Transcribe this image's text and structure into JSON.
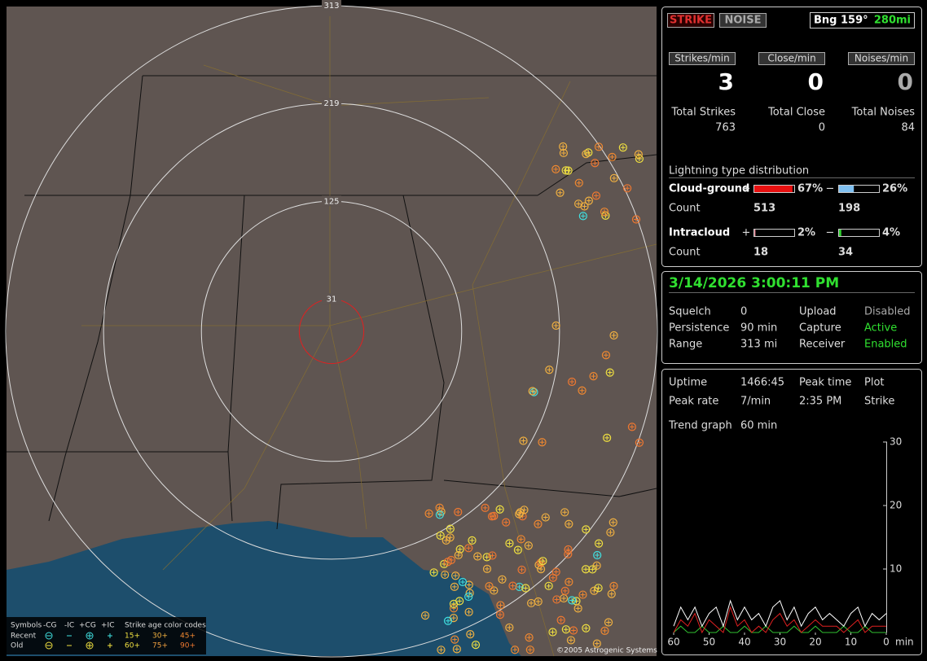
{
  "map": {
    "rings": [
      "313",
      "219",
      "125",
      "31"
    ],
    "copyright": "©2005 Astrogenic Systems",
    "legend": {
      "title": "Symbols",
      "symbols": [
        "-CG",
        "-IC",
        "+CG",
        "+IC"
      ],
      "rows": [
        "Recent",
        "Old"
      ],
      "age_title": "Strike age color codes",
      "ages": [
        {
          "label": "15+",
          "color": "#f0e040"
        },
        {
          "label": "30+",
          "color": "#f0b040"
        },
        {
          "label": "45+",
          "color": "#f08830"
        },
        {
          "label": "60+",
          "color": "#f0e040"
        },
        {
          "label": "75+",
          "color": "#f0a040"
        },
        {
          "label": "90+",
          "color": "#f07830"
        }
      ]
    }
  },
  "header": {
    "buttons": [
      "STRIKE",
      "NOISE"
    ],
    "bearing": "Bng 159°",
    "distance": "280mi"
  },
  "rates": [
    {
      "label": "Strikes/min",
      "value": "3",
      "total_label": "Total Strikes",
      "total": "763"
    },
    {
      "label": "Close/min",
      "value": "0",
      "total_label": "Total Close",
      "total": "0"
    },
    {
      "label": "Noises/min",
      "value": "0",
      "total_label": "Total Noises",
      "total": "84"
    }
  ],
  "distribution": {
    "title": "Lightning type distribution",
    "count_label": "Count",
    "rows": [
      {
        "name": "Cloud-ground",
        "pos_sign": "+",
        "pos": {
          "value": 67,
          "label": "67%"
        },
        "neg_sign": "−",
        "neg": {
          "value": 26,
          "label": "26%"
        },
        "pos_count": "513",
        "neg_count": "198"
      },
      {
        "name": "Intracloud",
        "pos_sign": "+",
        "pos": {
          "value": 2,
          "label": "2%"
        },
        "neg_sign": "−",
        "neg": {
          "value": 4,
          "label": "4%"
        },
        "pos_count": "18",
        "neg_count": "34"
      }
    ]
  },
  "status": {
    "datetime": "3/14/2026 3:00:11 PM",
    "rows": [
      [
        "Squelch",
        "0",
        "Upload",
        "Disabled"
      ],
      [
        "Persistence",
        "90 min",
        "Capture",
        "Active"
      ],
      [
        "Range",
        "313 mi",
        "Receiver",
        "Enabled"
      ]
    ]
  },
  "stats": {
    "rows": [
      [
        "Uptime",
        "1466:45",
        "Peak time",
        "Plot"
      ],
      [
        "Peak rate",
        "7/min",
        "2:35 PM",
        "Strike"
      ],
      [
        "Trend graph",
        "60 min"
      ]
    ]
  },
  "chart_data": {
    "type": "line",
    "x_unit": "min",
    "xlim": [
      60,
      0
    ],
    "ylim": [
      0,
      30
    ],
    "xticks": [
      60,
      50,
      40,
      30,
      20,
      10,
      0
    ],
    "yticks": [
      10,
      20,
      30
    ],
    "x": [
      60,
      58,
      56,
      54,
      52,
      50,
      48,
      46,
      44,
      42,
      40,
      38,
      36,
      34,
      32,
      30,
      28,
      26,
      24,
      22,
      20,
      18,
      16,
      14,
      12,
      10,
      8,
      6,
      4,
      2,
      0
    ],
    "series": [
      {
        "color": "#ffffff",
        "values": [
          1,
          4,
          2,
          4,
          1,
          3,
          4,
          1,
          5,
          2,
          4,
          2,
          3,
          1,
          4,
          5,
          2,
          4,
          1,
          3,
          4,
          2,
          3,
          2,
          1,
          3,
          4,
          1,
          3,
          2,
          3
        ]
      },
      {
        "color": "#e02020",
        "values": [
          0,
          2,
          1,
          3,
          0,
          2,
          1,
          0,
          4,
          1,
          2,
          0,
          1,
          0,
          2,
          3,
          1,
          2,
          0,
          1,
          2,
          1,
          1,
          1,
          0,
          1,
          2,
          0,
          1,
          1,
          1
        ]
      },
      {
        "color": "#30c030",
        "values": [
          0,
          1,
          0,
          0,
          1,
          0,
          0,
          1,
          0,
          0,
          1,
          0,
          0,
          1,
          0,
          0,
          0,
          1,
          0,
          0,
          1,
          0,
          0,
          0,
          1,
          0,
          0,
          1,
          0,
          0,
          0
        ]
      }
    ]
  }
}
